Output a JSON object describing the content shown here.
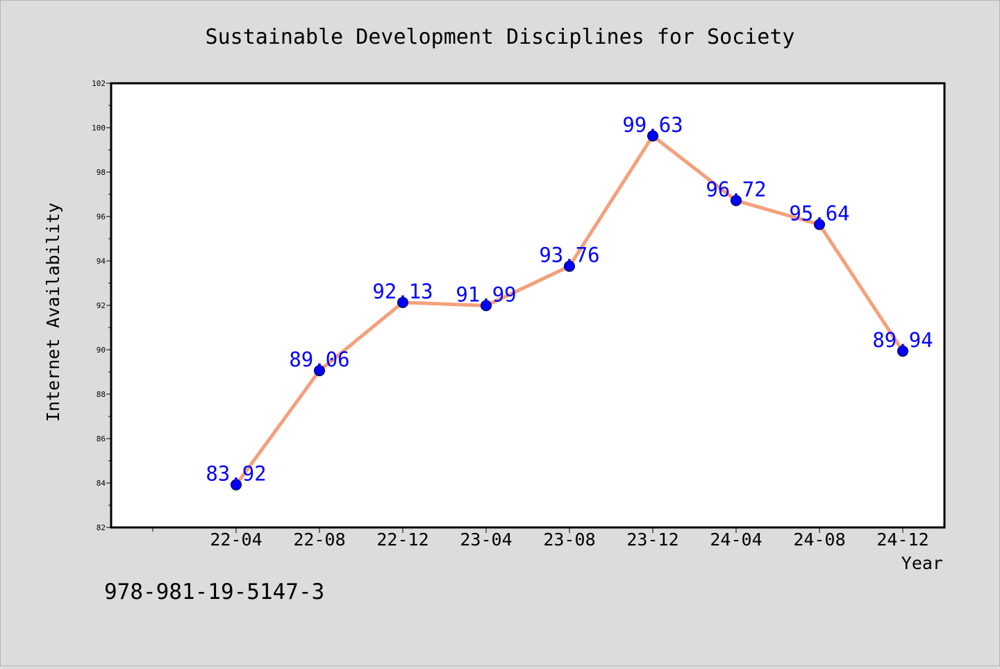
{
  "chart_data": {
    "type": "line",
    "title": "Sustainable Development Disciplines for Society",
    "xlabel": "Year",
    "ylabel": "Internet Availability",
    "categories": [
      "22-04",
      "22-08",
      "22-12",
      "23-04",
      "23-08",
      "23-12",
      "24-04",
      "24-08",
      "24-12"
    ],
    "series": [
      {
        "values": [
          83.92,
          89.06,
          92.13,
          91.99,
          93.76,
          99.63,
          96.72,
          95.64,
          89.94
        ]
      }
    ],
    "value_labels": [
      "83.92",
      "89.06",
      "92.13",
      "91.99",
      "93.76",
      "99.63",
      "96.72",
      "95.64",
      "89.94"
    ],
    "ylim": [
      82,
      102
    ],
    "yticks": [
      82,
      84,
      86,
      88,
      90,
      92,
      94,
      96,
      98,
      100,
      102
    ],
    "grid": false,
    "line_color": "#f4a07c",
    "marker_color": "#0000ff",
    "label_color": "#0000ff",
    "background_color": "#dcdcdc",
    "plot_background": "#ffffff"
  },
  "footer": {
    "isbn": "978-981-19-5147-3"
  }
}
